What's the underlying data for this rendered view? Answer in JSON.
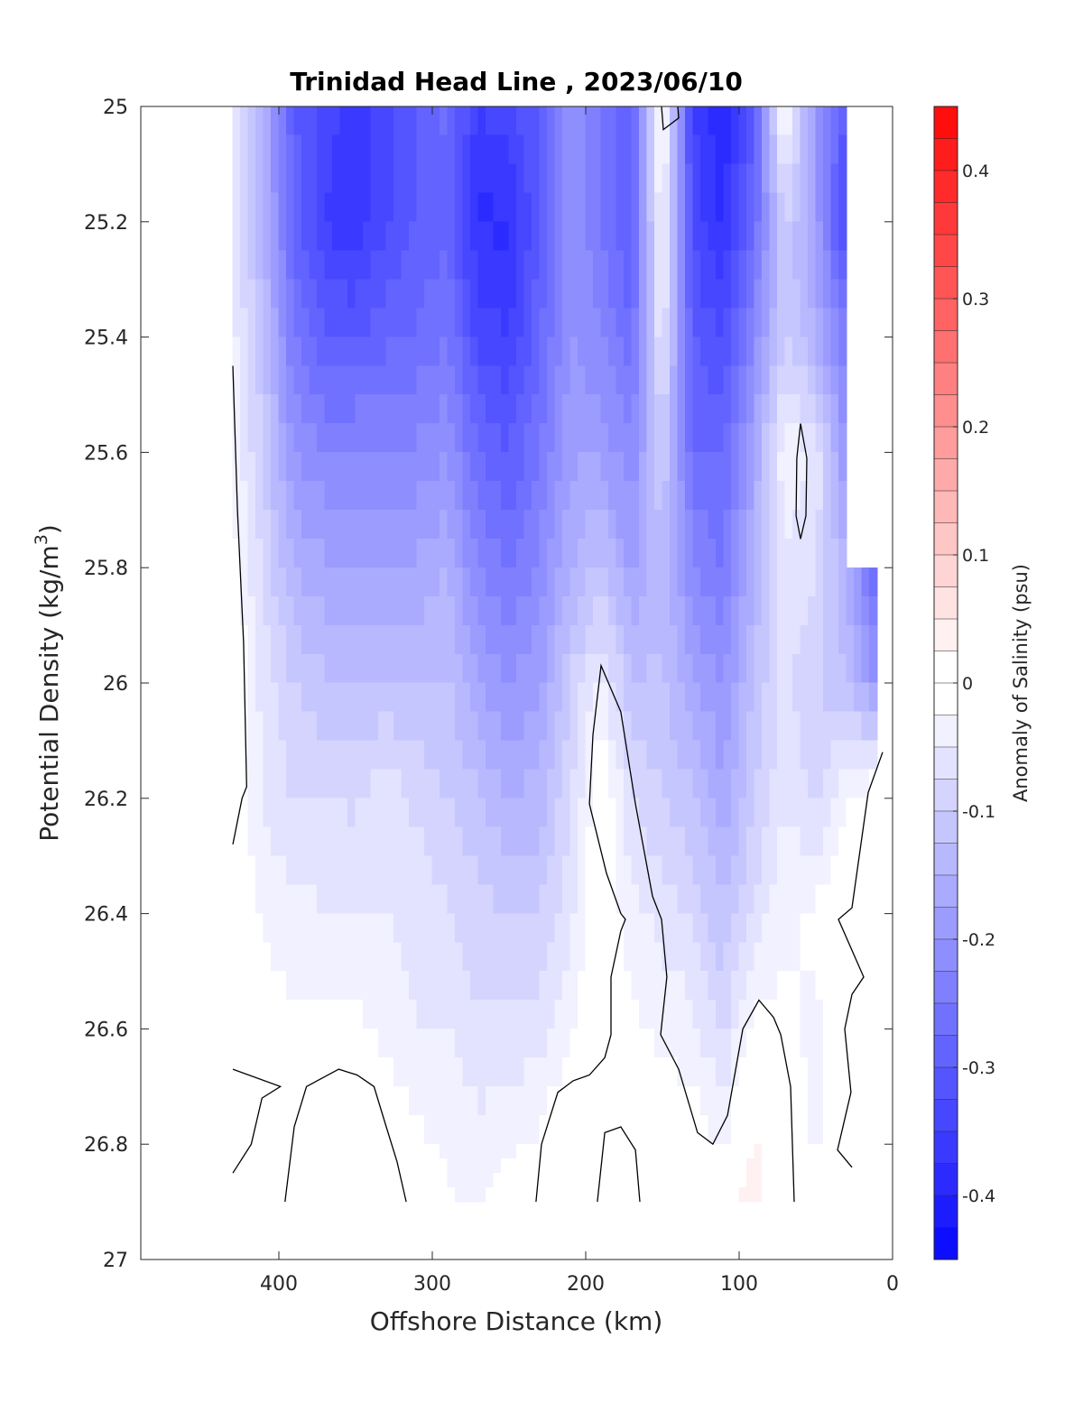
{
  "chart_data": {
    "type": "heatmap",
    "subtype": "filled-contour",
    "title": "Trinidad Head Line , 2023/06/10",
    "xlabel": "Offshore Distance (km)",
    "ylabel": "Potential Density (kg/m",
    "ylabel_sup": "3",
    "ylabel_end": ")",
    "xlim": [
      0,
      490
    ],
    "x_reversed": true,
    "ylim": [
      25,
      27
    ],
    "y_reversed": true,
    "xticks": [
      400,
      300,
      200,
      100,
      0
    ],
    "xtick_labels": [
      "400",
      "300",
      "200",
      "100",
      "0"
    ],
    "yticks": [
      25,
      25.2,
      25.4,
      25.6,
      25.8,
      26,
      26.2,
      26.4,
      26.6,
      26.8,
      27
    ],
    "ytick_labels": [
      "25",
      "25.2",
      "25.4",
      "25.6",
      "25.8",
      "26",
      "26.2",
      "26.4",
      "26.6",
      "26.8",
      "27"
    ],
    "colorbar": {
      "label": "Anomaly of Salinity (psu)",
      "range": [
        -0.45,
        0.45
      ],
      "level_step": 0.025,
      "ticks": [
        0.4,
        0.3,
        0.2,
        0.1,
        0,
        -0.1,
        -0.2,
        -0.3,
        -0.4
      ],
      "tick_labels": [
        "0.4",
        "0.3",
        "0.2",
        "0.1",
        "0",
        "-0.1",
        "-0.2",
        "-0.3",
        "-0.4"
      ],
      "negative_color": "#0000ff",
      "positive_color": "#ff0000",
      "zero_color": "#ffffff"
    },
    "grid_x": [
      430,
      410,
      390,
      370,
      350,
      330,
      310,
      290,
      270,
      250,
      230,
      210,
      190,
      170,
      150,
      130,
      110,
      90,
      70,
      50,
      30,
      10
    ],
    "grid_y": [
      25.0,
      25.2,
      25.4,
      25.6,
      25.8,
      26.0,
      26.2,
      26.4,
      26.6,
      26.8,
      26.9
    ],
    "values_by_x": [
      [
        -0.05,
        -0.05,
        -0.04,
        -0.03,
        -0.01,
        0.01,
        0,
        0,
        0,
        0,
        0
      ],
      [
        -0.15,
        -0.15,
        -0.12,
        -0.1,
        -0.08,
        -0.06,
        -0.05,
        -0.03,
        -0.01,
        0,
        0
      ],
      [
        -0.3,
        -0.28,
        -0.25,
        -0.2,
        -0.15,
        -0.1,
        -0.08,
        -0.04,
        -0.02,
        0,
        0
      ],
      [
        -0.33,
        -0.35,
        -0.3,
        -0.22,
        -0.17,
        -0.12,
        -0.07,
        -0.05,
        -0.02,
        0,
        0
      ],
      [
        -0.38,
        -0.37,
        -0.3,
        -0.22,
        -0.18,
        -0.13,
        -0.08,
        -0.05,
        -0.02,
        0,
        0
      ],
      [
        -0.33,
        -0.33,
        -0.28,
        -0.23,
        -0.17,
        -0.12,
        -0.06,
        -0.05,
        -0.03,
        0,
        0
      ],
      [
        -0.3,
        -0.3,
        -0.27,
        -0.22,
        -0.17,
        -0.13,
        -0.08,
        -0.06,
        -0.05,
        -0.02,
        0
      ],
      [
        -0.27,
        -0.28,
        -0.25,
        -0.2,
        -0.15,
        -0.12,
        -0.1,
        -0.07,
        -0.05,
        -0.03,
        -0.02
      ],
      [
        -0.35,
        -0.38,
        -0.33,
        -0.27,
        -0.22,
        -0.17,
        -0.12,
        -0.09,
        -0.07,
        -0.04,
        -0.03
      ],
      [
        -0.33,
        -0.38,
        -0.35,
        -0.3,
        -0.25,
        -0.2,
        -0.15,
        -0.1,
        -0.07,
        -0.03,
        -0.01
      ],
      [
        -0.3,
        -0.3,
        -0.28,
        -0.25,
        -0.22,
        -0.18,
        -0.14,
        -0.1,
        -0.06,
        -0.02,
        0
      ],
      [
        -0.2,
        -0.2,
        -0.2,
        -0.18,
        -0.15,
        -0.1,
        -0.08,
        -0.06,
        -0.03,
        0.01,
        0.01
      ],
      [
        -0.25,
        -0.25,
        -0.22,
        -0.18,
        -0.12,
        -0.04,
        0.005,
        0.005,
        0.005,
        0.005,
        0.005
      ],
      [
        -0.3,
        -0.3,
        -0.27,
        -0.22,
        -0.18,
        -0.12,
        -0.07,
        -0.04,
        -0.02,
        -0.005,
        0
      ],
      [
        0.005,
        -0.02,
        -0.05,
        -0.1,
        -0.13,
        -0.12,
        -0.1,
        -0.06,
        -0.03,
        0,
        0.02
      ],
      [
        -0.35,
        -0.33,
        -0.3,
        -0.27,
        -0.22,
        -0.17,
        -0.12,
        -0.08,
        -0.04,
        -0.01,
        0
      ],
      [
        -0.4,
        -0.38,
        -0.33,
        -0.28,
        -0.25,
        -0.2,
        -0.17,
        -0.12,
        -0.08,
        -0.03,
        0.01
      ],
      [
        -0.3,
        -0.27,
        -0.22,
        -0.17,
        -0.15,
        -0.12,
        -0.1,
        -0.07,
        -0.01,
        0.03,
        0.04
      ],
      [
        0,
        -0.1,
        -0.1,
        -0.03,
        -0.05,
        -0.07,
        -0.05,
        -0.03,
        -0.02,
        0,
        0
      ],
      [
        -0.2,
        -0.18,
        -0.15,
        -0.05,
        -0.07,
        -0.1,
        -0.08,
        -0.02,
        -0.03,
        -0.03,
        0
      ],
      [
        -0.3,
        -0.35,
        -0.25,
        -0.2,
        -0.15,
        -0.12,
        -0.03,
        0,
        0,
        0,
        0
      ],
      [
        null,
        null,
        null,
        null,
        -0.3,
        -0.2,
        0.01,
        0.02,
        0,
        0,
        0
      ]
    ],
    "zero_contours": [
      [
        [
          430,
          25.45
        ],
        [
          427,
          25.7
        ],
        [
          423,
          25.93
        ],
        [
          421,
          26.18
        ],
        [
          424,
          26.2
        ],
        [
          430,
          26.28
        ]
      ],
      [
        [
          430,
          26.67
        ],
        [
          399,
          26.7
        ],
        [
          411,
          26.72
        ],
        [
          418,
          26.8
        ],
        [
          430,
          26.85
        ]
      ],
      [
        [
          396,
          26.9
        ],
        [
          390,
          26.77
        ],
        [
          382,
          26.7
        ],
        [
          361,
          26.67
        ],
        [
          349,
          26.68
        ],
        [
          338,
          26.7
        ],
        [
          330,
          26.77
        ],
        [
          323,
          26.83
        ],
        [
          317,
          26.9
        ]
      ],
      [
        [
          232.4,
          26.9
        ],
        [
          228.8,
          26.8
        ],
        [
          218.2,
          26.71
        ],
        [
          208.2,
          26.69
        ],
        [
          197.6,
          26.68
        ],
        [
          187.6,
          26.65
        ],
        [
          183.5,
          26.61
        ],
        [
          183.5,
          26.51
        ],
        [
          177.1,
          26.43
        ],
        [
          174.1,
          26.41
        ],
        [
          177.1,
          26.4
        ],
        [
          186.5,
          26.33
        ],
        [
          197.6,
          26.21
        ],
        [
          195.3,
          26.09
        ],
        [
          190,
          25.97
        ],
        [
          177.1,
          26.05
        ],
        [
          167.6,
          26.21
        ],
        [
          156.5,
          26.37
        ],
        [
          150.6,
          26.41
        ],
        [
          147.1,
          26.51
        ],
        [
          151.2,
          26.61
        ],
        [
          139.4,
          26.67
        ],
        [
          127.1,
          26.78
        ],
        [
          117.1,
          26.8
        ],
        [
          107.6,
          26.75
        ],
        [
          97.6,
          26.6
        ],
        [
          87.1,
          26.55
        ],
        [
          77.6,
          26.58
        ],
        [
          72.9,
          26.61
        ],
        [
          66.5,
          26.7
        ],
        [
          64.1,
          26.9
        ]
      ],
      [
        [
          192.4,
          26.9
        ],
        [
          187.6,
          26.78
        ],
        [
          177.1,
          26.77
        ],
        [
          167.6,
          26.81
        ],
        [
          164.7,
          26.9
        ]
      ],
      [
        [
          6.5,
          26.12
        ],
        [
          15.9,
          26.19
        ],
        [
          26.5,
          26.39
        ],
        [
          35.3,
          26.41
        ],
        [
          18.8,
          26.51
        ],
        [
          26.5,
          26.54
        ],
        [
          31.2,
          26.6
        ],
        [
          27.1,
          26.71
        ],
        [
          35.9,
          26.81
        ],
        [
          26.5,
          26.84
        ]
      ],
      [
        [
          150.6,
          25
        ],
        [
          149.4,
          25.04
        ],
        [
          139.4,
          25.02
        ],
        [
          140,
          25
        ]
      ],
      [
        [
          60,
          25.55
        ],
        [
          55.9,
          25.61
        ],
        [
          56.5,
          25.71
        ],
        [
          60,
          25.75
        ],
        [
          62.9,
          25.71
        ],
        [
          62.4,
          25.61
        ],
        [
          60,
          25.55
        ]
      ]
    ],
    "contour_color": "#000000"
  }
}
